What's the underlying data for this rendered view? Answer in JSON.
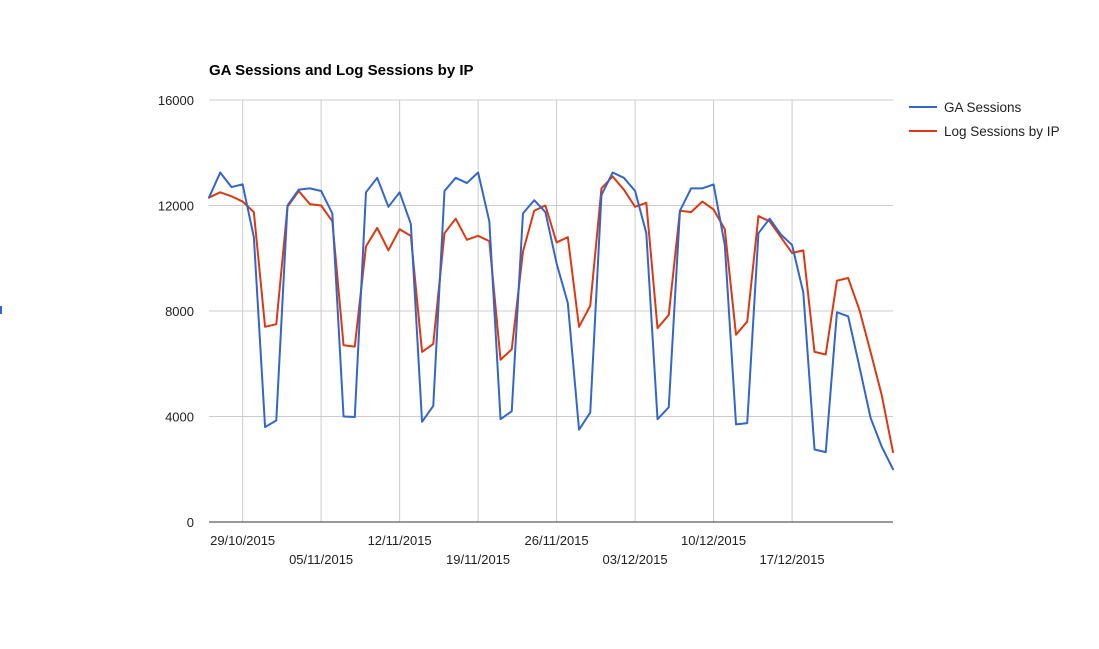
{
  "chart_data": {
    "type": "line",
    "title": "GA Sessions and Log Sessions by IP",
    "xlabel": "",
    "ylabel": "",
    "x_start": "26/10/2015",
    "x_labels": [
      "29/10/2015",
      "05/11/2015",
      "12/11/2015",
      "19/11/2015",
      "26/11/2015",
      "03/12/2015",
      "10/12/2015",
      "17/12/2015"
    ],
    "ylim": [
      0,
      16000
    ],
    "y_ticks": [
      0,
      4000,
      8000,
      12000,
      16000
    ],
    "grid": true,
    "legend_position": "right",
    "series": [
      {
        "name": "GA Sessions",
        "color": "#3366cc",
        "values": [
          12300,
          13250,
          12700,
          12800,
          10800,
          3600,
          3850,
          12000,
          12600,
          12650,
          12550,
          11700,
          4000,
          3980,
          12500,
          13050,
          11950,
          12500,
          11300,
          3800,
          4400,
          12550,
          13050,
          12850,
          13250,
          11400,
          3900,
          4200,
          11700,
          12200,
          11750,
          9800,
          8300,
          3500,
          4150,
          12400,
          13250,
          13050,
          12550,
          10950,
          3900,
          4350,
          11800,
          12650,
          12650,
          12800,
          10500,
          3700,
          3750,
          10950,
          11500,
          10900,
          10500,
          8700,
          2750,
          2650,
          7950,
          7800,
          5900,
          3950,
          2850,
          2000
        ]
      },
      {
        "name": "Log Sessions by IP",
        "color": "#dc3912",
        "values": [
          12300,
          12500,
          12350,
          12150,
          11750,
          7400,
          7500,
          11950,
          12550,
          12050,
          12000,
          11400,
          6700,
          6650,
          10450,
          11150,
          10300,
          11100,
          10850,
          6450,
          6750,
          10950,
          11500,
          10700,
          10850,
          10650,
          6150,
          6550,
          10250,
          11800,
          12000,
          10600,
          10800,
          7400,
          8200,
          12650,
          13100,
          12600,
          11950,
          12100,
          7350,
          7850,
          11800,
          11750,
          12150,
          11850,
          11100,
          7100,
          7600,
          11600,
          11400,
          10800,
          10200,
          10300,
          6450,
          6350,
          9150,
          9250,
          8050,
          6450,
          4800,
          2650
        ]
      }
    ]
  }
}
